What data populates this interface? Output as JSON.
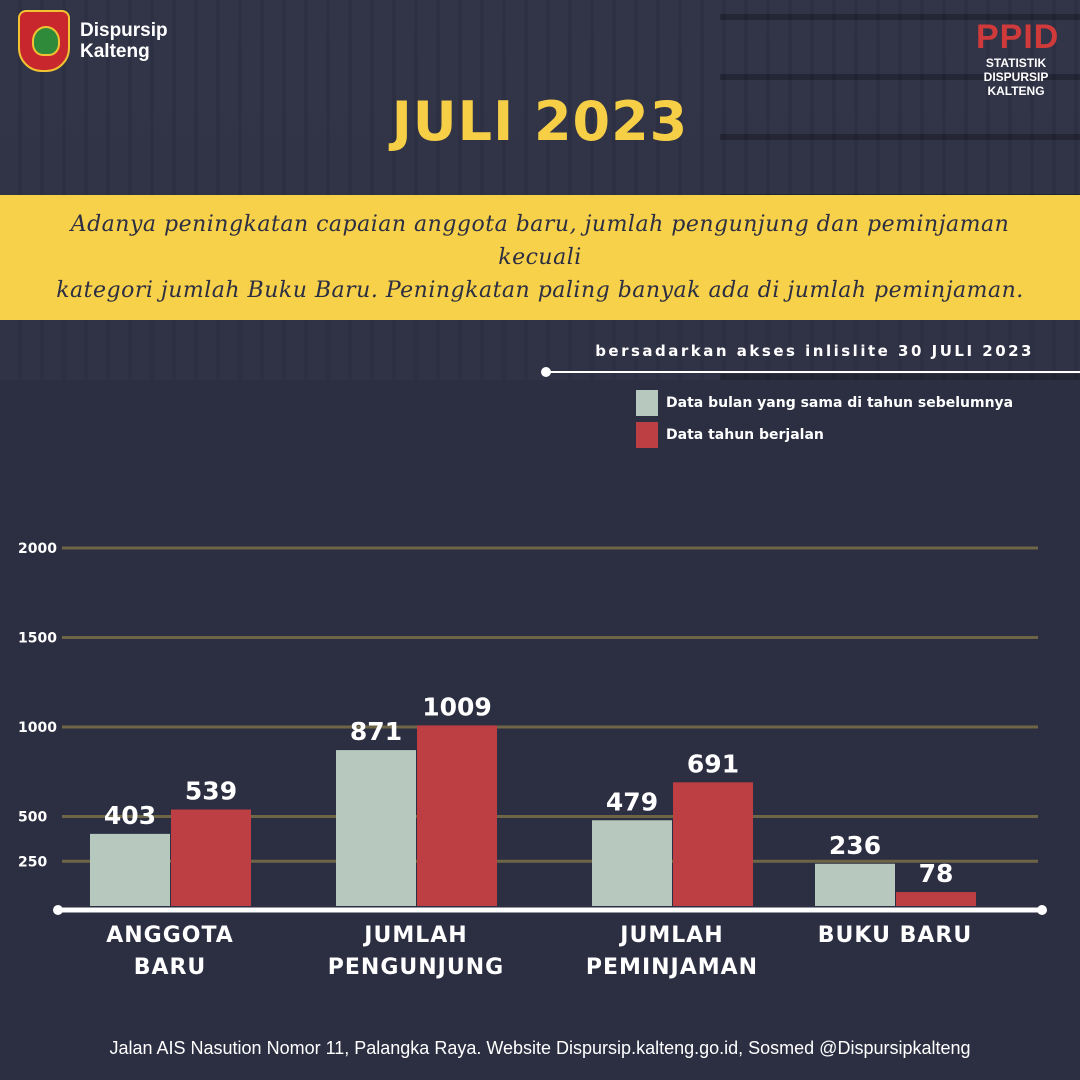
{
  "header": {
    "logo_line1": "Dispursip",
    "logo_line2": "Kalteng",
    "ppid_main": "PPID",
    "ppid_sub1": "STATISTIK",
    "ppid_sub2": "DISPURSIP",
    "ppid_sub3": "KALTENG",
    "title": "JULI 2023"
  },
  "banner": {
    "line1": "Adanya peningkatan capaian anggota baru, jumlah pengunjung dan peminjaman kecuali",
    "line2": "kategori jumlah Buku Baru. Peningkatan paling banyak ada di jumlah peminjaman."
  },
  "source_note": "bersadarkan akses inlislite 30 JULI 2023",
  "colors": {
    "previous_year": "#b7c8bf",
    "current_year": "#bd3e43",
    "accent_yellow": "#f8d14a"
  },
  "chart_data": {
    "type": "bar",
    "categories": [
      [
        "ANGGOTA",
        "BARU"
      ],
      [
        "JUMLAH",
        "PENGUNJUNG"
      ],
      [
        "JUMLAH",
        "PEMINJAMAN"
      ],
      [
        "BUKU BARU"
      ]
    ],
    "series": [
      {
        "name": "Data bulan yang sama di tahun sebelumnya",
        "values": [
          403,
          871,
          479,
          236
        ]
      },
      {
        "name": "Data tahun berjalan",
        "values": [
          539,
          1009,
          691,
          78
        ]
      }
    ],
    "yticks": [
      250,
      500,
      1000,
      1500,
      2000
    ],
    "ylim": [
      0,
      2000
    ],
    "grid": true,
    "legend_position": "top-right"
  },
  "footer": "Jalan AIS Nasution Nomor 11, Palangka Raya.  Website Dispursip.kalteng.go.id, Sosmed @Dispursipkalteng"
}
